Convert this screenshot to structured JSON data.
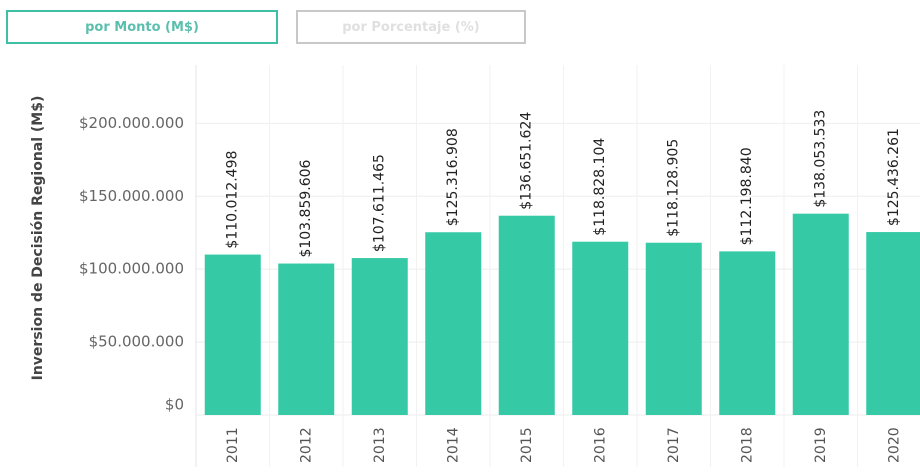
{
  "buttons": [
    "por Monto (M$)",
    "por Porcentaje (%)"
  ],
  "chart_data": {
    "type": "bar",
    "y_label": "Inversion de Decisión Regional (M$)",
    "categories": [
      "2011",
      "2012",
      "2013",
      "2014",
      "2015",
      "2016",
      "2017",
      "2018",
      "2019",
      "2020"
    ],
    "values": [
      110012498,
      103859606,
      107611465,
      125316908,
      136651624,
      118828104,
      118128905,
      112198840,
      138053533,
      125436261
    ],
    "value_labels": [
      "$110.012.498",
      "$103.859.606",
      "$107.611.465",
      "$125.316.908",
      "$136.651.624",
      "$118.828.104",
      "$118.128.905",
      "$112.198.840",
      "$138.053.533",
      "$125.436.261"
    ],
    "color": "#35c9a6",
    "ylim": [
      0,
      240000000
    ],
    "yticks": [
      {
        "value": 0,
        "label": "$0"
      },
      {
        "value": 50000000,
        "label": "$50.000.000"
      },
      {
        "value": 100000000,
        "label": "$100.000.000"
      },
      {
        "value": 150000000,
        "label": "$150.000.000"
      },
      {
        "value": 200000000,
        "label": "$200.000.000"
      }
    ],
    "grid": true
  }
}
